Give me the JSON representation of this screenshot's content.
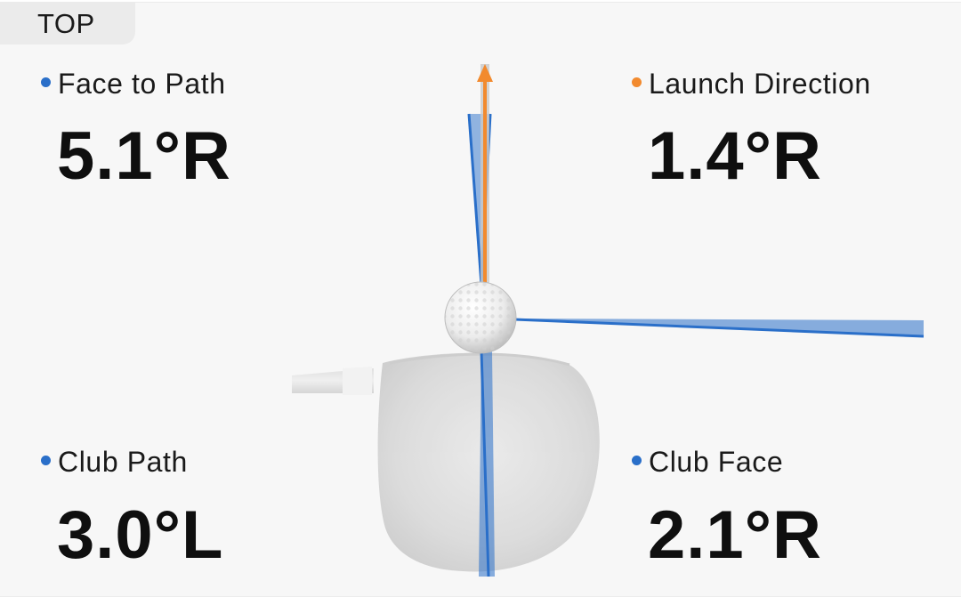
{
  "view": {
    "label": "TOP"
  },
  "colors": {
    "path_blue": "#2a6fc9",
    "launch_orange": "#f28a2e",
    "background": "#f7f7f7"
  },
  "metrics": {
    "face_to_path": {
      "label": "Face to Path",
      "value": "5.1°R",
      "dot_color": "#2a6fc9"
    },
    "launch_direction": {
      "label": "Launch Direction",
      "value": "1.4°R",
      "dot_color": "#f28a2e"
    },
    "club_path": {
      "label": "Club Path",
      "value": "3.0°L",
      "dot_color": "#2a6fc9"
    },
    "club_face": {
      "label": "Club Face",
      "value": "2.1°R",
      "dot_color": "#2a6fc9"
    }
  },
  "graphic": {
    "icons": [
      "golf-ball-icon",
      "driver-head-icon",
      "launch-arrow-icon"
    ]
  }
}
